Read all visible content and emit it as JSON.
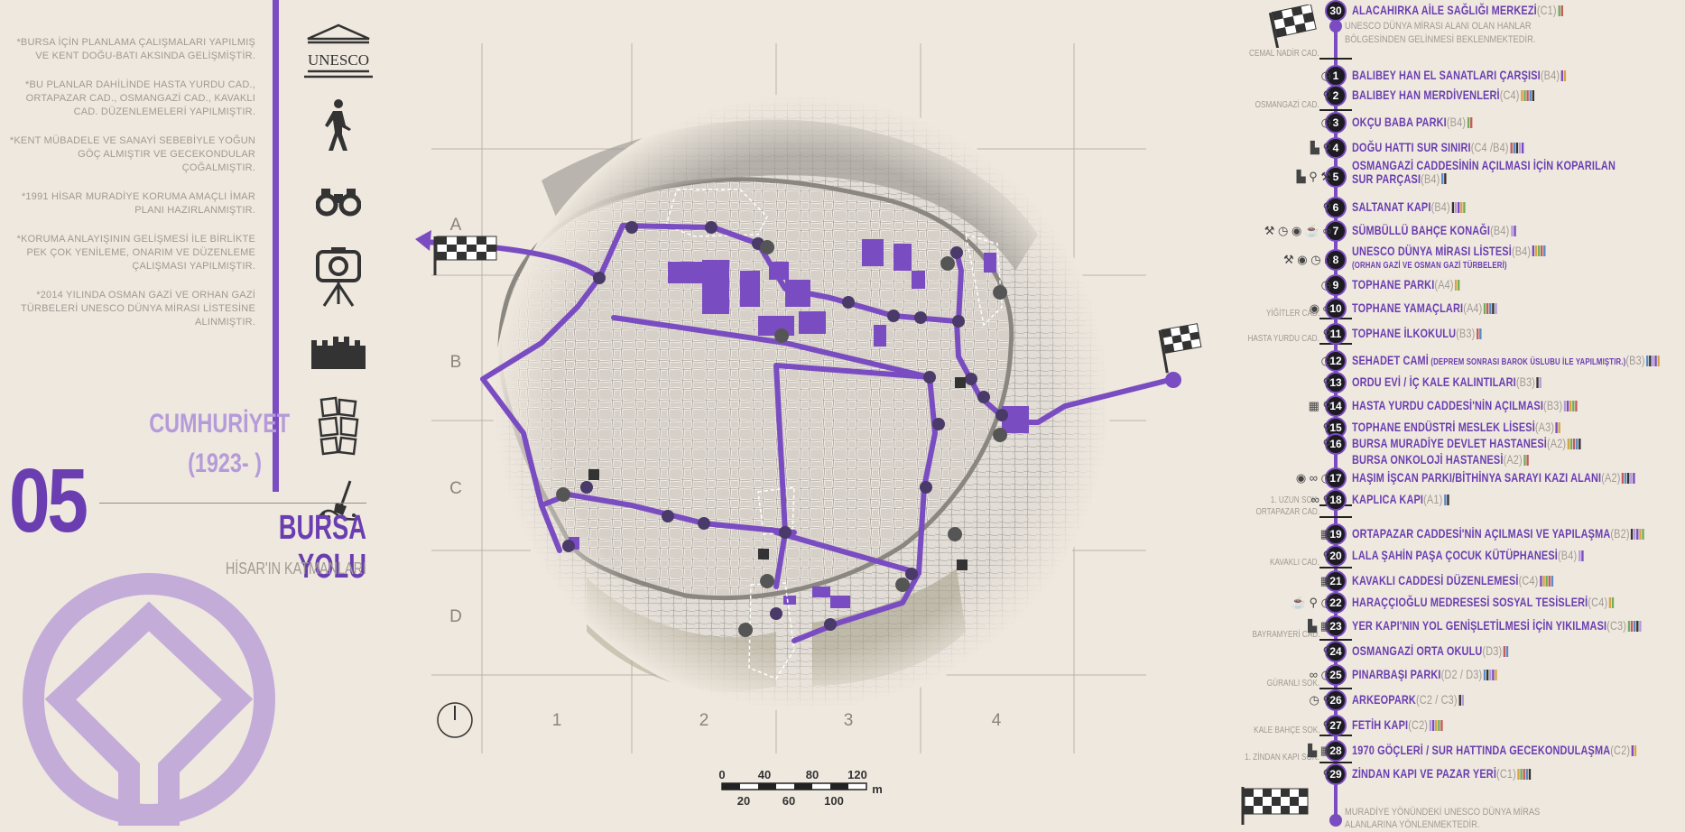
{
  "notes": [
    "*BURSA İÇİN PLANLAMA ÇALIŞMALARI YAPILMIŞ VE KENT DOĞU-BATI AKSINDA GELİŞMİŞTİR.",
    "*BU PLANLAR DAHİLİNDE HASTA YURDU CAD., ORTAPAZAR CAD., OSMANGAZİ CAD., KAVAKLI CAD. DÜZENLEMELERİ YAPILMIŞTIR.",
    "*KENT MÜBADELE VE SANAYİ SEBEBİYLE YOĞUN GÖÇ ALMIŞTIR VE GECEKONDULAR ÇOĞALMIŞTIR.",
    "*1991 HİSAR MURADİYE KORUMA AMAÇLI İMAR PLANI HAZIRLANMIŞTIR.",
    "*KORUMA ANLAYIŞININ GELİŞMESİ İLE BİRLİKTE PEK ÇOK YENİLEME, ONARIM VE DÜZENLEME ÇALIŞMASI YAPILMIŞTIR.",
    "*2014 YILINDA OSMAN GAZİ VE ORHAN GAZİ TÜRBELERİ UNESCO DÜNYA MİRASI LİSTESİNE ALINMIŞTIR."
  ],
  "unesco_label": "UNESCO",
  "era_line1": "CUMHURİYET",
  "era_line2": "(1923- )",
  "number": "05",
  "route_title": "BURSA YOLU",
  "route_subtitle": "HİSAR'IN KATMANLARI",
  "grid": {
    "rows": [
      "A",
      "B",
      "C",
      "D"
    ],
    "cols": [
      "1",
      "2",
      "3",
      "4"
    ]
  },
  "scale": {
    "top": [
      "0",
      "40",
      "80",
      "120"
    ],
    "bottom": [
      "20",
      "60",
      "100"
    ],
    "unit": "m"
  },
  "top_text": "UNESCO DÜNYA MİRASI ALANI OLAN HANLAR BÖLGESİNDEN GELİNMESİ BEKLENMEKTEDİR.",
  "bottom_text": "MURADİYE YÖNÜNDEKİ UNESCO DÜNYA MİRAS ALANLARINA YÖNLENMEKTEDİR.",
  "streets": [
    {
      "label": "CEMAL NADİR CAD.",
      "y": 60
    },
    {
      "label": "OSMANGAZİ CAD.",
      "y": 117
    },
    {
      "label": "YİĞİTLER CAD.",
      "y": 348
    },
    {
      "label": "HASTA YURDU CAD.",
      "y": 376
    },
    {
      "label": "1. UZUN SOK.",
      "y": 555
    },
    {
      "label": "ORTAPAZAR CAD.",
      "y": 568
    },
    {
      "label": "KAVAKLI CAD.",
      "y": 624
    },
    {
      "label": "BAYRAMYERİ CAD.",
      "y": 704
    },
    {
      "label": "GÜRANLI SOK.",
      "y": 758
    },
    {
      "label": "KALE BAHÇE SOK.",
      "y": 810
    },
    {
      "label": "1. ZİNDAN KAPI SOK.",
      "y": 840
    }
  ],
  "stops": [
    {
      "n": "1",
      "label": "BALIBEY HAN EL SANATLARI ÇARŞISI",
      "code": "(B4)",
      "icons": "◷"
    },
    {
      "n": "2",
      "label": "BALIBEY HAN MERDİVENLERİ",
      "code": "(C4)",
      "icons": "⚲"
    },
    {
      "n": "3",
      "label": "OKÇU BABA PARKI",
      "code": "(B4)",
      "icons": "◷"
    },
    {
      "n": "4",
      "label": "DOĞU HATTI SUR SINIRI",
      "code": "(C4 /B4)",
      "icons": "▙ ⚲"
    },
    {
      "n": "5",
      "label": "OSMANGAZİ CADDESİNİN AÇILMASI İÇİN KOPARILAN",
      "code": "(B4)",
      "extra": "SUR PARÇASI",
      "icons": "▙ ⚲ ⚒"
    },
    {
      "n": "6",
      "label": "SALTANAT KAPI",
      "code": "(B4)",
      "icons": "⚲"
    },
    {
      "n": "7",
      "label": "SÜMBÜLLÜ BAHÇE KONAĞI",
      "code": "(B4)",
      "icons": "⚒ ◷ ◉ ☕ ∞"
    },
    {
      "n": "8",
      "label": "UNESCO DÜNYA MİRASI LİSTESİ",
      "code": "(B4)",
      "sub": "(ORHAN GAZİ VE OSMAN GAZİ TÜRBELERİ)",
      "icons": "⚒ ◉ ◷ ⌂"
    },
    {
      "n": "9",
      "label": "TOPHANE PARKI",
      "code": "(A4)",
      "icons": "◷"
    },
    {
      "n": "10",
      "label": "TOPHANE YAMAÇLARI",
      "code": "(A4)",
      "icons": "◉ ∞"
    },
    {
      "n": "11",
      "label": "TOPHANE İLKOKULU",
      "code": "(B3)",
      "icons": "⚲"
    },
    {
      "n": "12",
      "label": "SEHADET CAMİ",
      "code": "(B3)",
      "sub": "(DEPREM SONRASI BAROK ÜSLUBU İLE YAPILMIŞTIR.)",
      "icons": "◷"
    },
    {
      "n": "13",
      "label": "ORDU EVİ / İÇ KALE KALINTILARI",
      "code": "(B3)",
      "icons": "⚲"
    },
    {
      "n": "14",
      "label": "HASTA YURDU CADDESİ'NİN AÇILMASI",
      "code": "(B3)",
      "icons": "▦ ⚲"
    },
    {
      "n": "15",
      "label": "TOPHANE ENDÜSTRİ MESLEK LİSESİ",
      "code": "(A3)",
      "icons": "⚲"
    },
    {
      "n": "16",
      "label": "BURSA MURADİYE DEVLET HASTANESİ",
      "code": "(A2)",
      "icons": "⚲"
    },
    {
      "n": "",
      "label": "BURSA ONKOLOJİ HASTANESİ",
      "code": "(A2)",
      "icons": ""
    },
    {
      "n": "17",
      "label": "HAŞIM İŞCAN PARKI/BİTHİNYA SARAYI KAZI ALANI",
      "code": "(A2)",
      "icons": "◉ ∞ ◷"
    },
    {
      "n": "18",
      "label": "KAPLICA KAPI",
      "code": "(A1)",
      "icons": "∞ ⚲"
    },
    {
      "n": "19",
      "label": "ORTAPAZAR CADDESİ'NİN AÇILMASI VE YAPILAŞMA",
      "code": "(B2)",
      "icons": "▦"
    },
    {
      "n": "20",
      "label": "LALA ŞAHİN PAŞA ÇOCUK KÜTÜPHANESİ",
      "code": "(B4)",
      "icons": "⚲"
    },
    {
      "n": "21",
      "label": "KAVAKLI CADDESİ DÜZENLEMESİ",
      "code": "(C4)",
      "icons": "▦"
    },
    {
      "n": "22",
      "label": "HARAÇÇIOĞLU MEDRESESİ SOSYAL TESİSLERİ",
      "code": "(C4)",
      "icons": "☕ ⚲ ◷"
    },
    {
      "n": "23",
      "label": "YER KAPI'NIN YOL GENİŞLETİLMESİ İÇİN YIKILMASI",
      "code": "(C3)",
      "icons": "▙ ▦"
    },
    {
      "n": "24",
      "label": "OSMANGAZİ ORTA OKULU",
      "code": "(D3)",
      "icons": "⚲"
    },
    {
      "n": "25",
      "label": "PINARBAŞI PARKI",
      "code": "(D2 / D3)",
      "icons": "∞ ◷"
    },
    {
      "n": "26",
      "label": "ARKEOPARK",
      "code": "(C2 / C3)",
      "icons": "◷ ⚲"
    },
    {
      "n": "27",
      "label": "FETİH KAPI",
      "code": "(C2)",
      "icons": "⚲"
    },
    {
      "n": "28",
      "label": "1970 GÖÇLERİ / SUR HATTINDA GECEKONDULAŞMA",
      "code": "(C2)",
      "icons": "▙ ▦"
    },
    {
      "n": "29",
      "label": "ZİNDAN KAPI VE PAZAR YERİ",
      "code": "(C1)",
      "icons": "⚲"
    },
    {
      "n": "30",
      "label": "ALACAHIRKA AİLE SAĞLIĞI MERKEZİ",
      "code": "(C1)",
      "icons": ""
    }
  ],
  "colors": {
    "accent": "#7a4cc1",
    "accent_light": "#b59bd9",
    "bg": "#efe8df",
    "muted": "#a09a94"
  }
}
